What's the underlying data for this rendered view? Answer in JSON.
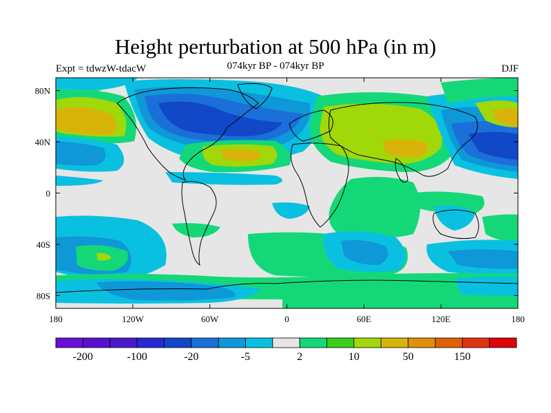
{
  "title": "Height perturbation at 500 hPa (in m)",
  "expt_label": "Expt = tdwzW-tdacW",
  "period_label": "074kyr BP - 074kyr BP",
  "season_label": "DJF",
  "map": {
    "lon_range": [
      -180,
      180
    ],
    "lat_range": [
      -90,
      90
    ],
    "x_ticks": [
      {
        "value": -180,
        "label": "180"
      },
      {
        "value": -120,
        "label": "120W"
      },
      {
        "value": -60,
        "label": "60W"
      },
      {
        "value": 0,
        "label": "0"
      },
      {
        "value": 60,
        "label": "60E"
      },
      {
        "value": 120,
        "label": "120E"
      },
      {
        "value": 180,
        "label": "180"
      }
    ],
    "y_ticks": [
      {
        "value": 80,
        "label": "80N"
      },
      {
        "value": 40,
        "label": "40N"
      },
      {
        "value": 0,
        "label": "0"
      },
      {
        "value": -40,
        "label": "40S"
      },
      {
        "value": -80,
        "label": "80S"
      }
    ],
    "background_color": "#e6e6e6"
  },
  "colorbar": {
    "colors": [
      "#6a0fd8",
      "#5a10d0",
      "#4a18cc",
      "#2a28d0",
      "#1048c8",
      "#1a70d8",
      "#0e98d8",
      "#0ac0e0",
      "#e6e6e6",
      "#14d878",
      "#3acd1a",
      "#a0d80a",
      "#d8b40a",
      "#e09008",
      "#e06008",
      "#e03410",
      "#e00008"
    ],
    "labels": [
      {
        "after_box": 1,
        "text": "-200"
      },
      {
        "after_box": 3,
        "text": "-100"
      },
      {
        "after_box": 5,
        "text": "-20"
      },
      {
        "after_box": 7,
        "text": "-5"
      },
      {
        "after_box": 9,
        "text": "2"
      },
      {
        "after_box": 11,
        "text": "10"
      },
      {
        "after_box": 13,
        "text": "50"
      },
      {
        "after_box": 15,
        "text": "150"
      }
    ]
  }
}
